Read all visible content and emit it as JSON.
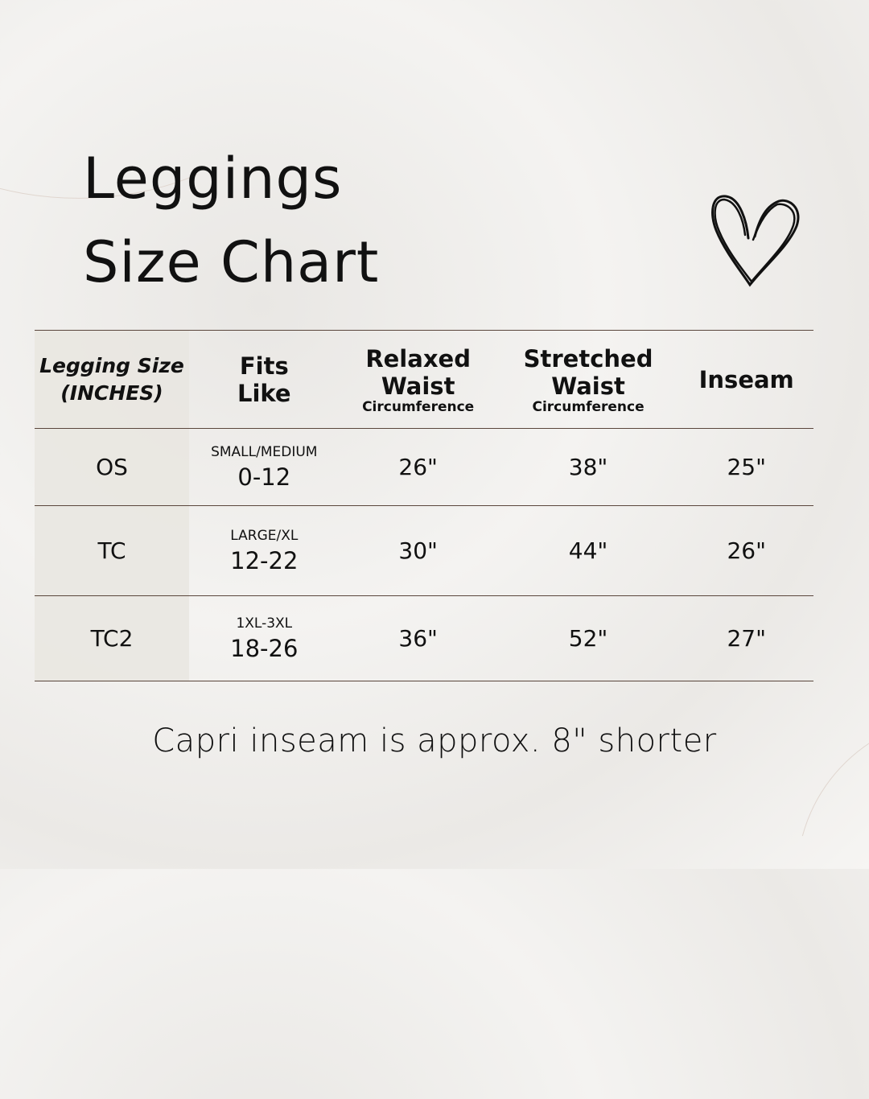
{
  "title": {
    "line1": "Leggings",
    "line2": "Size Chart"
  },
  "icons": {
    "decoration": "heart-icon"
  },
  "colors": {
    "divider": "#5a463c",
    "first_column_bg": "#e9e7e2",
    "text": "#111111"
  },
  "table": {
    "headers": [
      {
        "line1": "Legging Size",
        "line2": "(INCHES)"
      },
      {
        "line1": "Fits",
        "line2": "Like"
      },
      {
        "line1": "Relaxed",
        "line2": "Waist",
        "sub": "Circumference"
      },
      {
        "line1": "Stretched",
        "line2": "Waist",
        "sub": "Circumference"
      },
      {
        "line1": "Inseam"
      }
    ],
    "rows": [
      {
        "size": "OS",
        "fits_label": "SMALL/MEDIUM",
        "fits_range": "0-12",
        "relaxed": "26\"",
        "stretched": "38\"",
        "inseam": "25\""
      },
      {
        "size": "TC",
        "fits_label": "LARGE/XL",
        "fits_range": "12-22",
        "relaxed": "30\"",
        "stretched": "44\"",
        "inseam": "26\""
      },
      {
        "size": "TC2",
        "fits_label": "1XL-3XL",
        "fits_range": "18-26",
        "relaxed": "36\"",
        "stretched": "52\"",
        "inseam": "27\""
      }
    ]
  },
  "footer": "Capri inseam is approx. 8\" shorter"
}
